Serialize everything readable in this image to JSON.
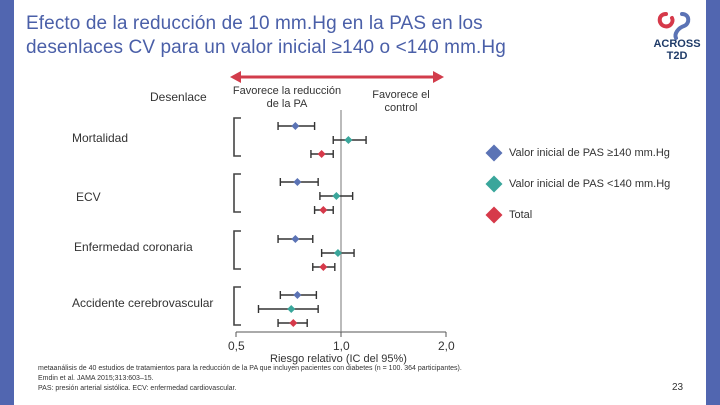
{
  "slide": {
    "title_line1": "Efecto de la reducción de 10 mm.Hg en la PAS en los",
    "title_line2": "desenlaces CV para un valor inicial ≥140 o <140 mm.Hg",
    "logo_line1": "ACROSS",
    "logo_line2": "T2D",
    "footnote_line1": "metaanálisis de 40 estudios de tratamientos para la reducción de la PA que incluyen pacientes con diabetes (n = 100. 364 participantes).",
    "footnote_line2": "Emdin et al. JAMA 2015;313:603–15.",
    "footnote_line3": "PAS: presión arterial sistólica. ECV: enfermedad cardiovascular.",
    "page_number": "23",
    "colors": {
      "blue_bar": "#5166b0",
      "accent_red": "#d23c4b",
      "title": "#4a5fa8"
    }
  },
  "chart_data": {
    "type": "forest",
    "column_header": "Desenlace",
    "favours_left": "Favorece la reducción de la PA",
    "favours_right": "Favorece el control",
    "xlabel": "Riesgo relativo (IC del 95%)",
    "xlim": [
      0.5,
      2.0
    ],
    "x_ticks": [
      "0,5",
      "1,0",
      "2,0"
    ],
    "tick_values": [
      0.5,
      1.0,
      2.0
    ],
    "reference_line": 1.0,
    "outcomes": [
      "Mortalidad",
      "ECV",
      "Enfermedad coronaria",
      "Accidente cerebrovascular"
    ],
    "series": [
      {
        "name": "Valor inicial de PAS ≥140 mm.Hg",
        "color": "#5b73b5",
        "estimates": [
          0.74,
          0.75,
          0.74,
          0.75
        ],
        "lower": [
          0.66,
          0.67,
          0.66,
          0.67
        ],
        "upper": [
          0.84,
          0.86,
          0.83,
          0.85
        ]
      },
      {
        "name": "Valor inicial de PAS <140 mm.Hg",
        "color": "#3aa69b",
        "estimates": [
          1.05,
          0.97,
          0.98,
          0.72
        ],
        "lower": [
          0.95,
          0.87,
          0.88,
          0.58
        ],
        "upper": [
          1.18,
          1.08,
          1.09,
          0.86
        ]
      },
      {
        "name": "Total",
        "color": "#d6394a",
        "estimates": [
          0.88,
          0.89,
          0.89,
          0.73
        ],
        "lower": [
          0.82,
          0.84,
          0.83,
          0.66
        ],
        "upper": [
          0.95,
          0.95,
          0.96,
          0.8
        ]
      }
    ]
  }
}
